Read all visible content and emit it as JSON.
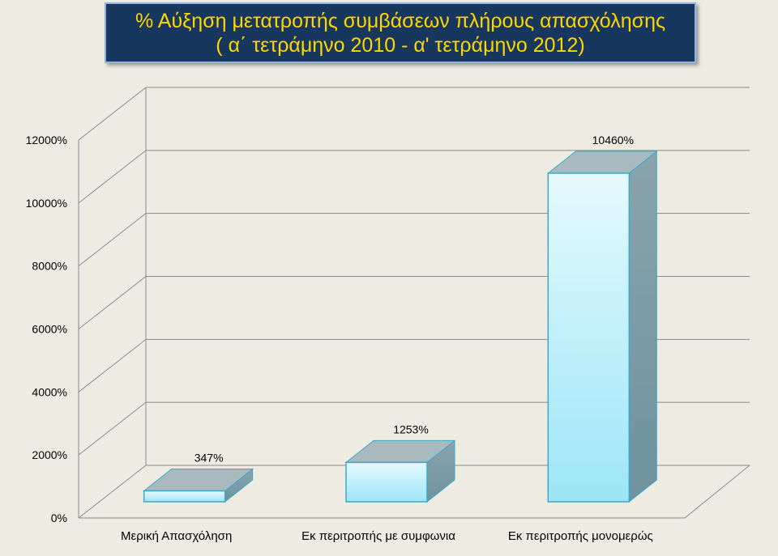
{
  "title_lines": [
    "% Αύξηση μετατροπής συμβάσεων πλήρους απασχόλησης",
    "( α΄ τετράμηνο  2010 - α' τετράμηνο 2012)"
  ],
  "chart_data": {
    "type": "bar",
    "title": "% Αύξηση μετατροπής συμβάσεων πλήρους απασχόλησης ( α΄ τετράμηνο  2010 - α' τετράμηνο 2012)",
    "categories": [
      "Μερική Απασχόληση",
      "Εκ περιτροπής με συμφωνια",
      "Εκ περιτροπής μονομερώς"
    ],
    "values": [
      347,
      1253,
      10460
    ],
    "data_labels": [
      "347%",
      "1253%",
      "10460%"
    ],
    "ylim": [
      0,
      12000
    ],
    "y_ticks": [
      0,
      2000,
      4000,
      6000,
      8000,
      10000,
      12000
    ],
    "y_tick_labels": [
      "0%",
      "2000%",
      "4000%",
      "6000%",
      "8000%",
      "10000%",
      "12000%"
    ],
    "xlabel": "",
    "ylabel": "",
    "grid": true,
    "legend": false,
    "projection": "3d",
    "colors": {
      "bar_front_top": "#e6f9ff",
      "bar_front_bottom": "#9ce6f6",
      "bar_side": "#7a9aa6",
      "bar_top": "#a9b9c0",
      "bar_edge": "#3aa9c7",
      "gridline": "#8a8a8a",
      "title_bg": "#17375e",
      "title_text": "#ffd700"
    }
  }
}
